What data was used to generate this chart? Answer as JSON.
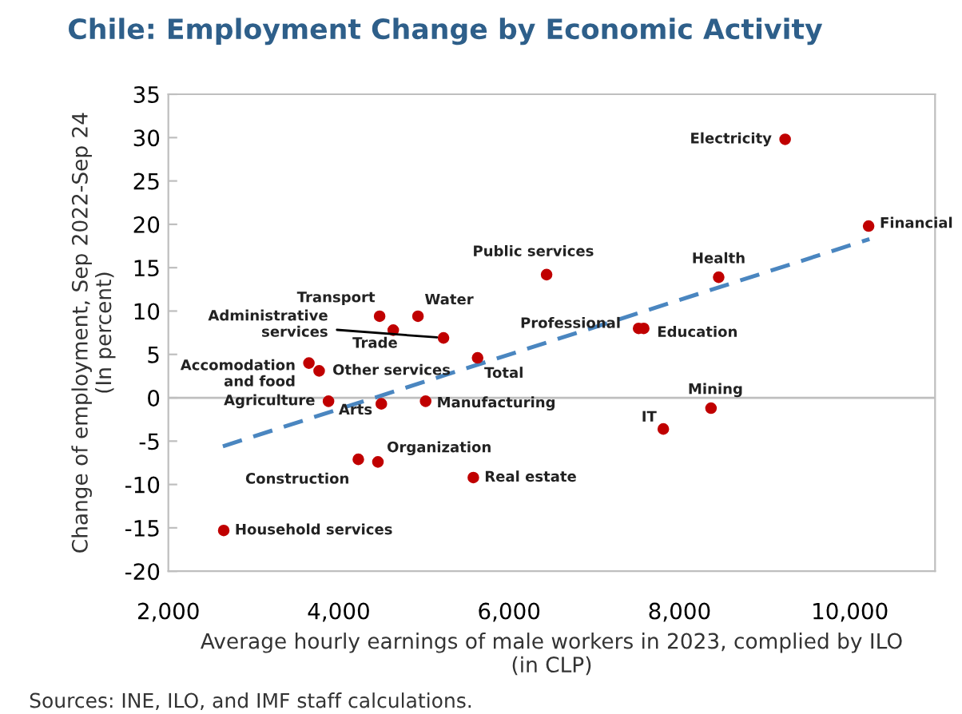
{
  "chart_data": {
    "type": "scatter",
    "title": "Chile: Employment Change by Economic Activity",
    "xlabel": "Average hourly earnings of male workers in 2023, complied by ILO\n(in CLP)",
    "ylabel": "Change of employment, Sep 2022-Sep 24\n(In percent)",
    "annotations": [
      "Sources: INE, ILO, and IMF staff calculations."
    ],
    "xlim": [
      2000,
      11000
    ],
    "xticks": [
      {
        "value": 2000,
        "label": "2,000"
      },
      {
        "value": 4000,
        "label": "4,000"
      },
      {
        "value": 6000,
        "label": "6,000"
      },
      {
        "value": 8000,
        "label": "8,000"
      },
      {
        "value": 10000,
        "label": "10,000"
      }
    ],
    "ylim": [
      -20,
      35
    ],
    "yticks": [
      -20,
      -15,
      -10,
      -5,
      0,
      5,
      10,
      15,
      20,
      25,
      30,
      35
    ],
    "grid": false,
    "legend": false,
    "marker": "circle",
    "ref_lines": [
      {
        "axis": "y",
        "value": 0,
        "color": "#bfbfbf"
      }
    ],
    "series": [
      {
        "name": "Electricity",
        "color": "#c00000",
        "x": [
          9240
        ],
        "values": [
          29.8
        ]
      },
      {
        "name": "Financial",
        "color": "#c00000",
        "x": [
          10220
        ],
        "values": [
          19.8
        ]
      },
      {
        "name": "Health",
        "color": "#c00000",
        "x": [
          8460
        ],
        "values": [
          13.9
        ]
      },
      {
        "name": "Public services",
        "color": "#c00000",
        "x": [
          6440
        ],
        "values": [
          14.2
        ]
      },
      {
        "name": "Professional",
        "color": "#c00000",
        "x": [
          7520
        ],
        "values": [
          8.0
        ]
      },
      {
        "name": "Education",
        "color": "#c00000",
        "x": [
          7580
        ],
        "values": [
          8.0
        ]
      },
      {
        "name": "Total",
        "color": "#c00000",
        "x": [
          5630
        ],
        "values": [
          4.6
        ]
      },
      {
        "name": "Mining",
        "color": "#c00000",
        "x": [
          8370
        ],
        "values": [
          -1.2
        ]
      },
      {
        "name": "IT",
        "color": "#c00000",
        "x": [
          7810
        ],
        "values": [
          -3.6
        ]
      },
      {
        "name": "Real estate",
        "color": "#c00000",
        "x": [
          5580
        ],
        "values": [
          -9.2
        ]
      },
      {
        "name": "Transport",
        "color": "#c00000",
        "x": [
          4480
        ],
        "values": [
          9.4
        ]
      },
      {
        "name": "Water",
        "color": "#c00000",
        "x": [
          4930
        ],
        "values": [
          9.4
        ]
      },
      {
        "name": "Trade",
        "color": "#c00000",
        "x": [
          4640
        ],
        "values": [
          7.8
        ]
      },
      {
        "name": "Administrative\nservices",
        "color": "#c00000",
        "x": [
          5230
        ],
        "values": [
          6.9
        ]
      },
      {
        "name": "Accomodation\nand food",
        "color": "#c00000",
        "x": [
          3650
        ],
        "values": [
          4.0
        ]
      },
      {
        "name": "Other services",
        "color": "#c00000",
        "x": [
          3770
        ],
        "values": [
          3.1
        ]
      },
      {
        "name": "Agriculture",
        "color": "#c00000",
        "x": [
          3880
        ],
        "values": [
          -0.4
        ]
      },
      {
        "name": "Arts",
        "color": "#c00000",
        "x": [
          4500
        ],
        "values": [
          -0.7
        ]
      },
      {
        "name": "Manufacturing",
        "color": "#c00000",
        "x": [
          5020
        ],
        "values": [
          -0.4
        ]
      },
      {
        "name": "Construction",
        "color": "#c00000",
        "x": [
          4230
        ],
        "values": [
          -7.1
        ]
      },
      {
        "name": "Organization",
        "color": "#c00000",
        "x": [
          4460
        ],
        "values": [
          -7.4
        ]
      },
      {
        "name": "Household services",
        "color": "#c00000",
        "x": [
          2650
        ],
        "values": [
          -15.3
        ]
      },
      {
        "type": "line",
        "line_style": "dashed",
        "marker": "none",
        "color": "#4a86c0",
        "x": [
          2640,
          10230
        ],
        "values": [
          -5.6,
          18.3
        ]
      }
    ]
  }
}
